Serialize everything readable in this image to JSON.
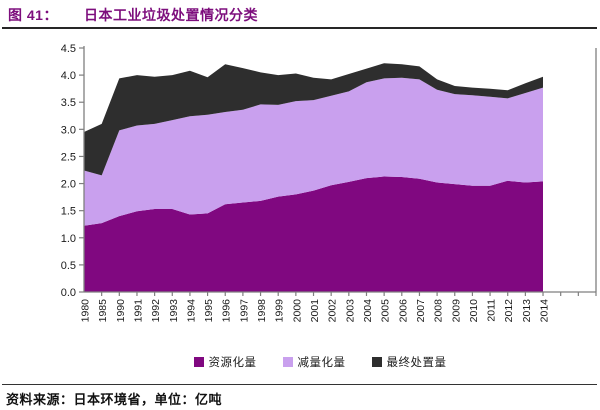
{
  "header": {
    "figure_label": "图 41：",
    "title": "日本工业垃圾处置情况分类",
    "title_color": "#7D0E7D"
  },
  "footer": {
    "source": "资料来源：日本环境省，单位：亿吨"
  },
  "chart_data": {
    "type": "area",
    "stacked": true,
    "title": "日本工业垃圾处置情况分类",
    "xlabel": "",
    "ylabel": "",
    "unit": "亿吨",
    "ylim": [
      0,
      4.5
    ],
    "ytick_step": 0.5,
    "y_ticks": [
      "0.0",
      "0.5",
      "1.0",
      "1.5",
      "2.0",
      "2.5",
      "3.0",
      "3.5",
      "4.0",
      "4.5"
    ],
    "grid": false,
    "legend_position": "bottom",
    "categories": [
      "1980",
      "1985",
      "1990",
      "1991",
      "1992",
      "1993",
      "1994",
      "1995",
      "1996",
      "1997",
      "1998",
      "1999",
      "2000",
      "2001",
      "2002",
      "2003",
      "2004",
      "2005",
      "2006",
      "2007",
      "2008",
      "2009",
      "2010",
      "2011",
      "2012",
      "2013",
      "2014"
    ],
    "series": [
      {
        "name": "资源化量",
        "color": "#800880",
        "values": [
          1.22,
          1.27,
          1.4,
          1.49,
          1.53,
          1.53,
          1.43,
          1.45,
          1.62,
          1.65,
          1.68,
          1.76,
          1.8,
          1.87,
          1.97,
          2.03,
          2.1,
          2.13,
          2.12,
          2.09,
          2.02,
          1.99,
          1.96,
          1.96,
          2.05,
          2.02,
          2.04
        ]
      },
      {
        "name": "减量化量",
        "color": "#C9A0EE",
        "values": [
          1.02,
          0.88,
          1.58,
          1.58,
          1.57,
          1.64,
          1.81,
          1.82,
          1.7,
          1.71,
          1.78,
          1.69,
          1.72,
          1.67,
          1.65,
          1.67,
          1.77,
          1.81,
          1.83,
          1.83,
          1.71,
          1.66,
          1.67,
          1.64,
          1.52,
          1.65,
          1.73
        ]
      },
      {
        "name": "最终处置量",
        "color": "#2E2E2E",
        "values": [
          0.71,
          0.95,
          0.96,
          0.93,
          0.87,
          0.83,
          0.84,
          0.69,
          0.88,
          0.77,
          0.59,
          0.55,
          0.51,
          0.41,
          0.3,
          0.32,
          0.25,
          0.28,
          0.25,
          0.24,
          0.19,
          0.15,
          0.14,
          0.15,
          0.15,
          0.18,
          0.2
        ]
      }
    ],
    "axis": {
      "color": "#7F7F7F",
      "tick_label_color": "#1A1A1A"
    }
  }
}
